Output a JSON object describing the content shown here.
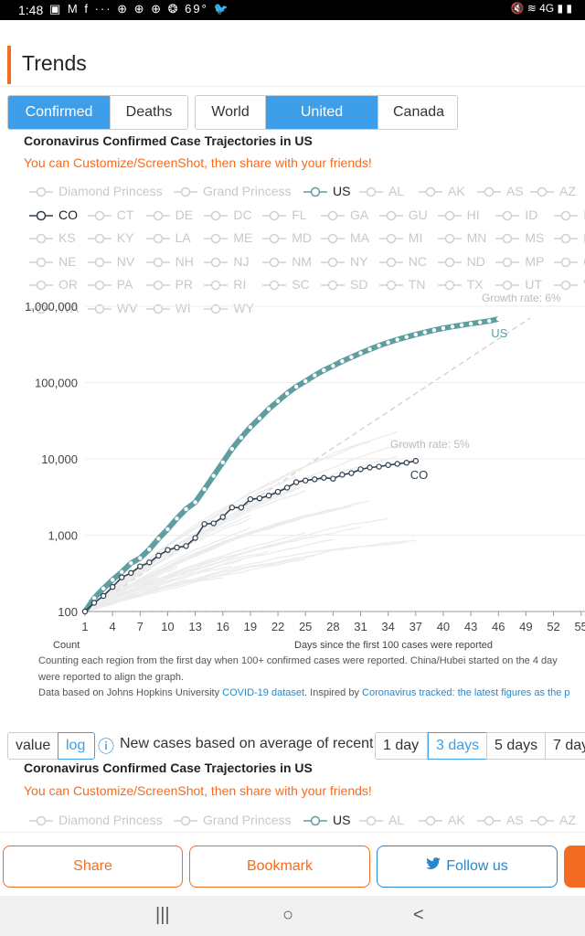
{
  "status": {
    "time": "1:48",
    "left_icons": "▣ M f ··· ⊕ ⊕ ⊕ ❂ 69° 🐦",
    "right_icons": "🔇 ≋ 4G ▮ ▮"
  },
  "header": {
    "title": "Trends"
  },
  "metric_tabs": [
    "Confirmed",
    "Deaths"
  ],
  "region_tabs": [
    "World",
    "United States",
    "Canada"
  ],
  "chart_title": "Coronavirus Confirmed Case Trajectories in US",
  "promo": "You can Customize/ScreenShot, then share with your friends!",
  "legend_rows": [
    [
      "Diamond Princess",
      "Grand Princess",
      "US",
      "AL",
      "AK",
      "AS",
      "AZ"
    ],
    [
      "CO",
      "CT",
      "DE",
      "DC",
      "FL",
      "GA",
      "GU",
      "HI",
      "ID",
      "IL"
    ],
    [
      "KS",
      "KY",
      "LA",
      "ME",
      "MD",
      "MA",
      "MI",
      "MN",
      "MS",
      "MO"
    ],
    [
      "NE",
      "NV",
      "NH",
      "NJ",
      "NM",
      "NY",
      "NC",
      "ND",
      "MP",
      "OH"
    ],
    [
      "OR",
      "PA",
      "PR",
      "RI",
      "SC",
      "SD",
      "TN",
      "TX",
      "UT",
      "VT"
    ],
    [
      "WA",
      "WV",
      "WI",
      "WY"
    ]
  ],
  "legend_row1_repeat": [
    "Diamond Princess",
    "Grand Princess",
    "US",
    "AL",
    "AK",
    "AS",
    "AZ"
  ],
  "chart_data": {
    "type": "line",
    "title": "Coronavirus Confirmed Case Trajectories in US",
    "xlabel": "Days since the first 100 cases were reported",
    "ylabel": "Count",
    "yscale": "log",
    "ylim": [
      100,
      1000000
    ],
    "xlim": [
      1,
      55
    ],
    "yticks": [
      "100",
      "1,000",
      "10,000",
      "100,000",
      "1,000,000"
    ],
    "xticks": [
      "1",
      "4",
      "7",
      "10",
      "13",
      "16",
      "19",
      "22",
      "25",
      "28",
      "31",
      "34",
      "37",
      "40",
      "43",
      "46",
      "49",
      "52",
      "55"
    ],
    "growth_labels": [
      "Growth rate: 6%",
      "Growth rate: 5%"
    ],
    "series": [
      {
        "name": "US",
        "color": "#5f9ea0",
        "x": [
          1,
          2,
          3,
          4,
          5,
          6,
          7,
          8,
          9,
          10,
          11,
          12,
          13,
          14,
          15,
          16,
          17,
          18,
          19,
          20,
          21,
          22,
          23,
          24,
          25,
          26,
          27,
          28,
          29,
          30,
          31,
          32,
          33,
          34,
          35,
          36,
          37,
          38,
          39,
          40,
          41,
          42,
          43,
          44,
          45,
          46
        ],
        "values": [
          100,
          150,
          200,
          260,
          330,
          430,
          500,
          650,
          900,
          1200,
          1650,
          2200,
          2700,
          4000,
          6000,
          9000,
          13500,
          19000,
          26000,
          34000,
          45000,
          57000,
          72000,
          88000,
          104000,
          124000,
          145000,
          165000,
          190000,
          215000,
          243000,
          272000,
          305000,
          335000,
          365000,
          395000,
          425000,
          455000,
          485000,
          515000,
          540000,
          565000,
          590000,
          615000,
          640000,
          680000
        ]
      },
      {
        "name": "CO",
        "color": "#2f3e4e",
        "x": [
          1,
          2,
          3,
          4,
          5,
          6,
          7,
          8,
          9,
          10,
          11,
          12,
          13,
          14,
          15,
          16,
          17,
          18,
          19,
          20,
          21,
          22,
          23,
          24,
          25,
          26,
          27,
          28,
          29,
          30,
          31,
          32,
          33,
          34,
          35,
          36,
          37
        ],
        "values": [
          100,
          130,
          160,
          210,
          280,
          320,
          390,
          440,
          540,
          640,
          690,
          720,
          920,
          1400,
          1430,
          1730,
          2300,
          2300,
          2960,
          3040,
          3300,
          3700,
          4200,
          4950,
          5200,
          5400,
          5650,
          5500,
          6200,
          6500,
          7300,
          7700,
          7900,
          8300,
          8600,
          8900,
          9400
        ]
      }
    ]
  },
  "notes": [
    "Counting each region from the first day when 100+ confirmed cases  were reported. China/Hubei started on the 4 day",
    "were reported to align the graph."
  ],
  "source_prefix": "Data based on Johns Hopkins University ",
  "source_link": "COVID-19 dataset",
  "inspired_prefix": ". Inspired by ",
  "inspired_link": "Coronavirus tracked: the latest figures as the p",
  "controls": {
    "value": "value",
    "log": "log",
    "info_icon": "ⓘ",
    "new_cases_label": "New cases based on average of recent",
    "windows": [
      "1 day",
      "3 days",
      "5 days",
      "7 day"
    ]
  },
  "footer": {
    "share": "Share",
    "bookmark": "Bookmark",
    "follow": "Follow us"
  },
  "nav": {
    "recents": "|||",
    "home": "○",
    "back": "<"
  }
}
